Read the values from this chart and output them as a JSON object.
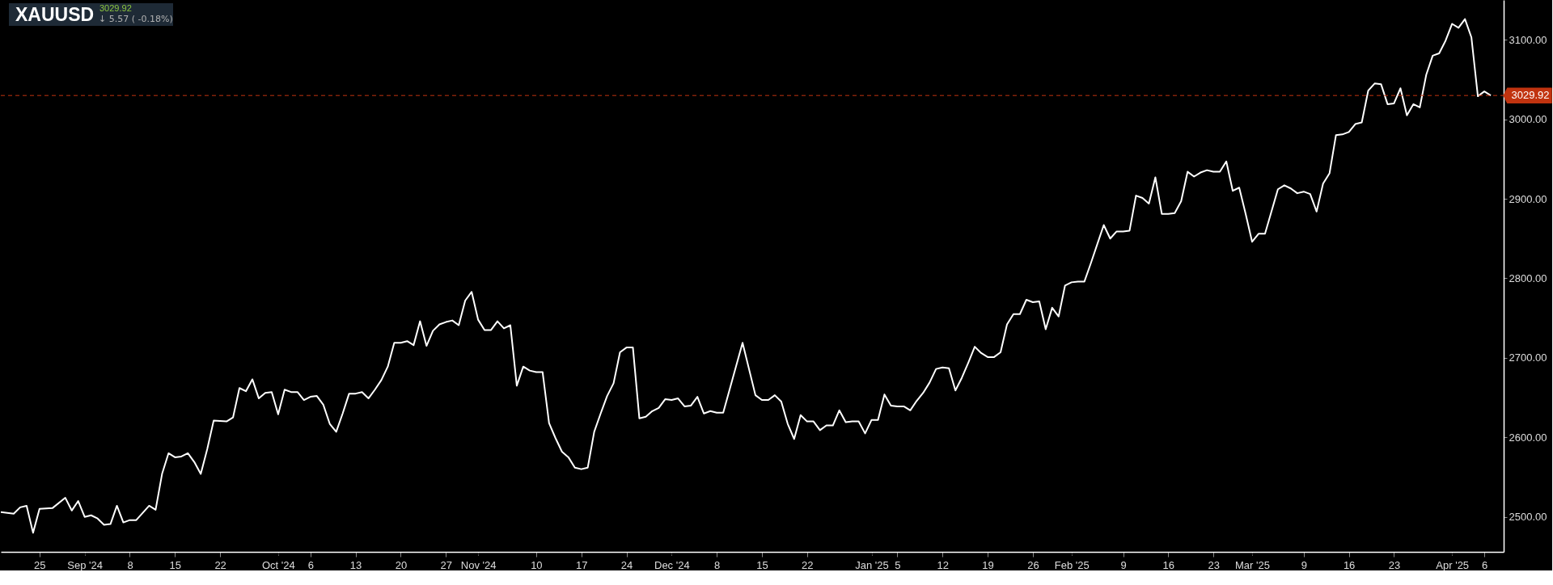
{
  "chart_data": {
    "type": "line",
    "title": "XAUUSD",
    "annotations": [
      "3029.92",
      "↓ 5.57 ( -0.18%)"
    ],
    "x": [
      "2024-08-19",
      "2024-08-21",
      "2024-08-22",
      "2024-08-23",
      "2024-08-24",
      "2024-08-25",
      "2024-08-27",
      "2024-08-29",
      "2024-08-30",
      "2024-08-31",
      "2024-09-01",
      "2024-09-02",
      "2024-09-03",
      "2024-09-04",
      "2024-09-05",
      "2024-09-06",
      "2024-09-07",
      "2024-09-08",
      "2024-09-09",
      "2024-09-11",
      "2024-09-12",
      "2024-09-13",
      "2024-09-14",
      "2024-09-15",
      "2024-09-16",
      "2024-09-17",
      "2024-09-18",
      "2024-09-19",
      "2024-09-20",
      "2024-09-21",
      "2024-09-23",
      "2024-09-24",
      "2024-09-25",
      "2024-09-26",
      "2024-09-27",
      "2024-09-28",
      "2024-09-29",
      "2024-09-30",
      "2024-10-01",
      "2024-10-02",
      "2024-10-03",
      "2024-10-04",
      "2024-10-05",
      "2024-10-06",
      "2024-10-07",
      "2024-10-08",
      "2024-10-09",
      "2024-10-10",
      "2024-10-11",
      "2024-10-12",
      "2024-10-13",
      "2024-10-14",
      "2024-10-15",
      "2024-10-16",
      "2024-10-17",
      "2024-10-18",
      "2024-10-19",
      "2024-10-20",
      "2024-10-21",
      "2024-10-22",
      "2024-10-23",
      "2024-10-24",
      "2024-10-25",
      "2024-10-26",
      "2024-10-27",
      "2024-10-28",
      "2024-10-29",
      "2024-10-30",
      "2024-10-31",
      "2024-11-01",
      "2024-11-02",
      "2024-11-03",
      "2024-11-04",
      "2024-11-05",
      "2024-11-06",
      "2024-11-07",
      "2024-11-08",
      "2024-11-09",
      "2024-11-10",
      "2024-11-11",
      "2024-11-12",
      "2024-11-13",
      "2024-11-14",
      "2024-11-15",
      "2024-11-16",
      "2024-11-17",
      "2024-11-18",
      "2024-11-19",
      "2024-11-20",
      "2024-11-21",
      "2024-11-22",
      "2024-11-23",
      "2024-11-24",
      "2024-11-25",
      "2024-11-26",
      "2024-11-27",
      "2024-11-28",
      "2024-11-29",
      "2024-11-30",
      "2024-12-01",
      "2024-12-02",
      "2024-12-03",
      "2024-12-04",
      "2024-12-05",
      "2024-12-06",
      "2024-12-07",
      "2024-12-08",
      "2024-12-09",
      "2024-12-12",
      "2024-12-14",
      "2024-12-15",
      "2024-12-16",
      "2024-12-17",
      "2024-12-18",
      "2024-12-19",
      "2024-12-20",
      "2024-12-21",
      "2024-12-22",
      "2024-12-23",
      "2024-12-24",
      "2024-12-25",
      "2024-12-26",
      "2024-12-27",
      "2024-12-28",
      "2024-12-29",
      "2024-12-30",
      "2024-12-31",
      "2025-01-01",
      "2025-01-02",
      "2025-01-03",
      "2025-01-04",
      "2025-01-05",
      "2025-01-06",
      "2025-01-07",
      "2025-01-08",
      "2025-01-09",
      "2025-01-10",
      "2025-01-11",
      "2025-01-12",
      "2025-01-13",
      "2025-01-14",
      "2025-01-15",
      "2025-01-16",
      "2025-01-17",
      "2025-01-18",
      "2025-01-19",
      "2025-01-20",
      "2025-01-21",
      "2025-01-22",
      "2025-01-23",
      "2025-01-24",
      "2025-01-25",
      "2025-01-26",
      "2025-01-27",
      "2025-01-28",
      "2025-01-29",
      "2025-01-30",
      "2025-01-31",
      "2025-02-01",
      "2025-02-02",
      "2025-02-03",
      "2025-02-04",
      "2025-02-05",
      "2025-02-06",
      "2025-02-07",
      "2025-02-08",
      "2025-02-09",
      "2025-02-10",
      "2025-02-11",
      "2025-02-12",
      "2025-02-13",
      "2025-02-14",
      "2025-02-15",
      "2025-02-16",
      "2025-02-17",
      "2025-02-18",
      "2025-02-19",
      "2025-02-20",
      "2025-02-21",
      "2025-02-22",
      "2025-02-23",
      "2025-02-24",
      "2025-02-25",
      "2025-02-26",
      "2025-02-27",
      "2025-02-28",
      "2025-03-01",
      "2025-03-02",
      "2025-03-03",
      "2025-03-04",
      "2025-03-05",
      "2025-03-06",
      "2025-03-07",
      "2025-03-08",
      "2025-03-09",
      "2025-03-10",
      "2025-03-11",
      "2025-03-12",
      "2025-03-13",
      "2025-03-14",
      "2025-03-15",
      "2025-03-16",
      "2025-03-17",
      "2025-03-18",
      "2025-03-19",
      "2025-03-20",
      "2025-03-21",
      "2025-03-22",
      "2025-03-23",
      "2025-03-24",
      "2025-03-25",
      "2025-03-26",
      "2025-03-27",
      "2025-03-28",
      "2025-03-29",
      "2025-03-30",
      "2025-03-31",
      "2025-04-01",
      "2025-04-02",
      "2025-04-03",
      "2025-04-04",
      "2025-04-05",
      "2025-04-06",
      "2025-04-07"
    ],
    "series": [
      {
        "color": "#ffffff",
        "values": [
          2506,
          2504,
          2512,
          2514,
          2480,
          2510,
          2511,
          2524,
          2508,
          2520,
          2500,
          2502,
          2498,
          2490,
          2491,
          2514,
          2493,
          2496,
          2496,
          2514,
          2509,
          2554,
          2580,
          2575,
          2576,
          2580,
          2569,
          2554,
          2585,
          2621,
          2620,
          2625,
          2662,
          2658,
          2673,
          2649,
          2656,
          2657,
          2629,
          2660,
          2657,
          2657,
          2647,
          2651,
          2652,
          2641,
          2617,
          2607,
          2630,
          2655,
          2655,
          2657,
          2649,
          2660,
          2672,
          2689,
          2719,
          2719,
          2721,
          2716,
          2746,
          2715,
          2734,
          2742,
          2745,
          2747,
          2741,
          2772,
          2783,
          2748,
          2735,
          2735,
          2746,
          2737,
          2741,
          2665,
          2689,
          2684,
          2682,
          2682,
          2618,
          2599,
          2582,
          2575,
          2562,
          2560,
          2562,
          2607,
          2630,
          2652,
          2668,
          2707,
          2713,
          2713,
          2624,
          2626,
          2633,
          2637,
          2648,
          2647,
          2649,
          2639,
          2640,
          2651,
          2630,
          2633,
          2631,
          2631,
          2719,
          2653,
          2647,
          2647,
          2653,
          2645,
          2617,
          2598,
          2628,
          2620,
          2620,
          2609,
          2615,
          2615,
          2634,
          2619,
          2620,
          2620,
          2605,
          2622,
          2622,
          2654,
          2640,
          2639,
          2639,
          2634,
          2646,
          2656,
          2669,
          2686,
          2688,
          2687,
          2659,
          2675,
          2694,
          2714,
          2706,
          2701,
          2701,
          2707,
          2742,
          2755,
          2755,
          2773,
          2770,
          2771,
          2736,
          2763,
          2752,
          2791,
          2795,
          2796,
          2796,
          2819,
          2843,
          2867,
          2850,
          2859,
          2859,
          2860,
          2904,
          2901,
          2894,
          2927,
          2881,
          2881,
          2882,
          2897,
          2934,
          2928,
          2933,
          2936,
          2934,
          2934,
          2947,
          2910,
          2914,
          2881,
          2846,
          2856,
          2856,
          2884,
          2912,
          2917,
          2913,
          2907,
          2909,
          2906,
          2884,
          2919,
          2932,
          2980,
          2981,
          2984,
          2994,
          2996,
          3036,
          3045,
          3044,
          3019,
          3020,
          3039,
          3005,
          3019,
          3015,
          3056,
          3080,
          3083,
          3099,
          3120,
          3115,
          3126,
          3103,
          3029,
          3035,
          3029.92
        ]
      }
    ],
    "xlim": [
      "2024-08-19",
      "2025-04-09"
    ],
    "xticks": [
      {
        "value": "2024-08-25",
        "label": "25"
      },
      {
        "value": "2024-09-01",
        "label": "Sep '24"
      },
      {
        "value": "2024-09-08",
        "label": "8"
      },
      {
        "value": "2024-09-15",
        "label": "15"
      },
      {
        "value": "2024-09-22",
        "label": "22"
      },
      {
        "value": "2024-10-01",
        "label": "Oct '24"
      },
      {
        "value": "2024-10-06",
        "label": "6"
      },
      {
        "value": "2024-10-13",
        "label": "13"
      },
      {
        "value": "2024-10-20",
        "label": "20"
      },
      {
        "value": "2024-10-27",
        "label": "27"
      },
      {
        "value": "2024-11-01",
        "label": "Nov '24"
      },
      {
        "value": "2024-11-10",
        "label": "10"
      },
      {
        "value": "2024-11-17",
        "label": "17"
      },
      {
        "value": "2024-11-24",
        "label": "24"
      },
      {
        "value": "2024-12-01",
        "label": "Dec '24"
      },
      {
        "value": "2024-12-08",
        "label": "8"
      },
      {
        "value": "2024-12-15",
        "label": "15"
      },
      {
        "value": "2024-12-22",
        "label": "22"
      },
      {
        "value": "2025-01-01",
        "label": "Jan '25"
      },
      {
        "value": "2025-01-05",
        "label": "5"
      },
      {
        "value": "2025-01-12",
        "label": "12"
      },
      {
        "value": "2025-01-19",
        "label": "19"
      },
      {
        "value": "2025-01-26",
        "label": "26"
      },
      {
        "value": "2025-02-01",
        "label": "Feb '25"
      },
      {
        "value": "2025-02-09",
        "label": "9"
      },
      {
        "value": "2025-02-16",
        "label": "16"
      },
      {
        "value": "2025-02-23",
        "label": "23"
      },
      {
        "value": "2025-03-01",
        "label": "Mar '25"
      },
      {
        "value": "2025-03-09",
        "label": "9"
      },
      {
        "value": "2025-03-16",
        "label": "16"
      },
      {
        "value": "2025-03-23",
        "label": "23"
      },
      {
        "value": "2025-04-01",
        "label": "Apr '25"
      },
      {
        "value": "2025-04-06",
        "label": "6"
      }
    ],
    "ylim": [
      2456,
      3150
    ],
    "yticks": [
      {
        "value": 2500,
        "label": "2500.00"
      },
      {
        "value": 2600,
        "label": "2600.00"
      },
      {
        "value": 2700,
        "label": "2700.00"
      },
      {
        "value": 2800,
        "label": "2800.00"
      },
      {
        "value": 2900,
        "label": "2900.00"
      },
      {
        "value": 3000,
        "label": "3000.00"
      },
      {
        "value": 3100,
        "label": "3100.00"
      }
    ],
    "ref_lines": [
      {
        "axis": "y",
        "value": 3029.92,
        "label": "3029.92",
        "color": "#c1330f",
        "line_style": "dashed"
      }
    ]
  }
}
